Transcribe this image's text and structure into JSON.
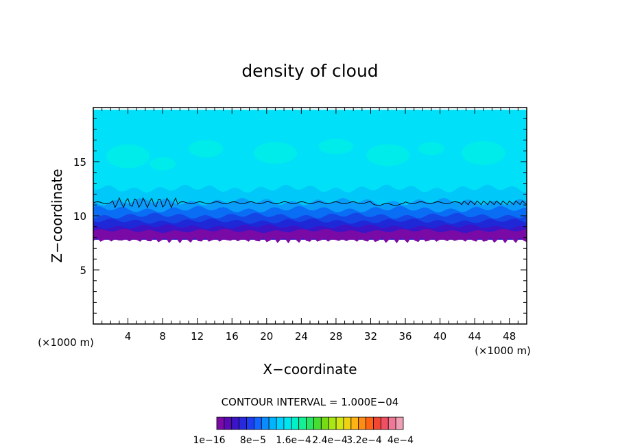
{
  "chart_data": {
    "type": "heatmap",
    "title": "density of cloud",
    "xlabel": "X−coordinate",
    "ylabel": "Z−coordinate",
    "x_unit_label": "(×1000 m)",
    "z_unit_label": "(×1000 m)",
    "xlim": [
      0,
      50
    ],
    "ylim": [
      0,
      20
    ],
    "x_ticks": [
      4,
      8,
      12,
      16,
      20,
      24,
      28,
      32,
      36,
      40,
      44,
      48
    ],
    "y_ticks": [
      5,
      10,
      15
    ],
    "contour_interval_label": "CONTOUR INTERVAL = 1.000E−04",
    "colorbar_tick_labels": [
      "1e−16",
      "8e−5",
      "1.6e−4",
      "2.4e−4",
      "3.2e−4",
      "4e−4"
    ],
    "colorbar_colors": [
      "#7a0aa5",
      "#5a0ab4",
      "#3c14c8",
      "#2828dc",
      "#1e3cf0",
      "#1464ff",
      "#0a8cff",
      "#00b4ff",
      "#00d2ff",
      "#00e6f0",
      "#00f0c8",
      "#14f096",
      "#28e664",
      "#46dc32",
      "#78dc14",
      "#aae614",
      "#d2e614",
      "#f0d214",
      "#ffb414",
      "#ff8c14",
      "#ff6414",
      "#f04632",
      "#f05064",
      "#f07896",
      "#f0a0b4"
    ],
    "cloud_field": {
      "cloud_base_km": 7.8,
      "cloud_top_km": 19.8,
      "contour_line_km": 11.2,
      "layers_from_base": [
        {
          "top_km": 8.6,
          "color": "#7a0aa5"
        },
        {
          "top_km": 9.0,
          "color": "#3c14c8"
        },
        {
          "top_km": 9.5,
          "color": "#1e28d7"
        },
        {
          "top_km": 10.0,
          "color": "#1446e6"
        },
        {
          "top_km": 10.6,
          "color": "#0a6ef5"
        },
        {
          "top_km": 11.3,
          "color": "#0a9cfa"
        },
        {
          "top_km": 12.5,
          "color": "#00c8f8"
        },
        {
          "top_km": 19.8,
          "color": "#00e0f8"
        }
      ],
      "upper_patch_color": "#00f0e6"
    }
  }
}
